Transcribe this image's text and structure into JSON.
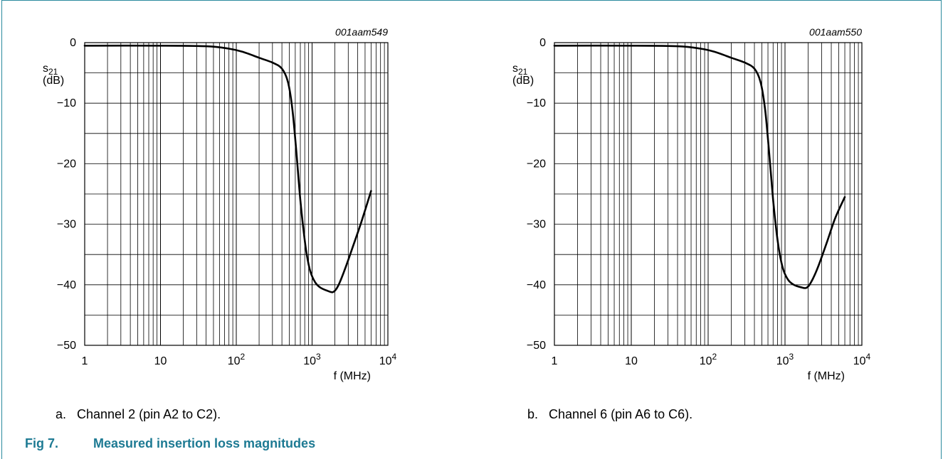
{
  "figure": {
    "number": "Fig 7.",
    "title": "Measured insertion loss magnitudes"
  },
  "chart_data": [
    {
      "type": "line",
      "panel": "a",
      "caption": "a.   Channel 2 (pin A2 to C2).",
      "code": "001aam549",
      "ylabel_main": "s",
      "ylabel_sub": "21",
      "ylabel_unit": "(dB)",
      "xlabel": "f (MHz)",
      "xscale": "log",
      "xlim": [
        1,
        10000
      ],
      "ylim": [
        -50,
        0
      ],
      "grid": true,
      "yticks": [
        0,
        -10,
        -20,
        -30,
        -40,
        -50
      ],
      "ytick_labels": [
        "0",
        "−10",
        "−20",
        "−30",
        "−40",
        "−50"
      ],
      "xticks": [
        {
          "value": 1,
          "base": "1",
          "exp": ""
        },
        {
          "value": 10,
          "base": "10",
          "exp": ""
        },
        {
          "value": 100,
          "base": "10",
          "exp": "2"
        },
        {
          "value": 1000,
          "base": "10",
          "exp": "3"
        },
        {
          "value": 10000,
          "base": "10",
          "exp": "4"
        }
      ],
      "series": [
        {
          "x": [
            1,
            10,
            40,
            80,
            120,
            200,
            300,
            400,
            480,
            550,
            620,
            700,
            780,
            850,
            950,
            1100,
            1300,
            1600,
            1900,
            2200,
            2700,
            3500,
            4500,
            6000
          ],
          "y": [
            -0.5,
            -0.5,
            -0.6,
            -1.0,
            -1.5,
            -2.5,
            -3.3,
            -4.3,
            -6.5,
            -11.0,
            -18.0,
            -26.0,
            -31.5,
            -35.0,
            -37.8,
            -39.6,
            -40.5,
            -41.0,
            -41.2,
            -40.2,
            -37.5,
            -33.5,
            -29.5,
            -24.5
          ]
        }
      ]
    },
    {
      "type": "line",
      "panel": "b",
      "caption": "b.   Channel 6 (pin A6 to C6).",
      "code": "001aam550",
      "ylabel_main": "s",
      "ylabel_sub": "21",
      "ylabel_unit": "(dB)",
      "xlabel": "f (MHz)",
      "xscale": "log",
      "xlim": [
        1,
        10000
      ],
      "ylim": [
        -50,
        0
      ],
      "grid": true,
      "yticks": [
        0,
        -10,
        -20,
        -30,
        -40,
        -50
      ],
      "ytick_labels": [
        "0",
        "−10",
        "−20",
        "−30",
        "−40",
        "−50"
      ],
      "xticks": [
        {
          "value": 1,
          "base": "1",
          "exp": ""
        },
        {
          "value": 10,
          "base": "10",
          "exp": ""
        },
        {
          "value": 100,
          "base": "10",
          "exp": "2"
        },
        {
          "value": 1000,
          "base": "10",
          "exp": "3"
        },
        {
          "value": 10000,
          "base": "10",
          "exp": "4"
        }
      ],
      "series": [
        {
          "x": [
            1,
            10,
            40,
            80,
            120,
            200,
            300,
            400,
            480,
            550,
            620,
            700,
            780,
            850,
            950,
            1100,
            1300,
            1600,
            1900,
            2200,
            2700,
            3500,
            4500,
            6000
          ],
          "y": [
            -0.5,
            -0.5,
            -0.6,
            -1.0,
            -1.5,
            -2.5,
            -3.3,
            -4.3,
            -6.5,
            -11.0,
            -18.0,
            -26.0,
            -31.5,
            -34.8,
            -37.5,
            -39.2,
            -40.0,
            -40.4,
            -40.5,
            -39.5,
            -37.0,
            -33.0,
            -29.0,
            -25.5
          ]
        }
      ]
    }
  ]
}
